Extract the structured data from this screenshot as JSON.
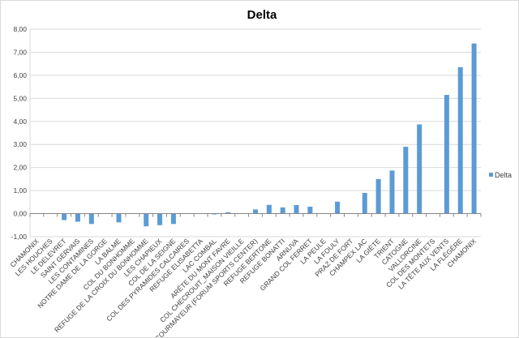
{
  "chart_data": {
    "type": "bar",
    "title": "Delta",
    "xlabel": "",
    "ylabel": "",
    "ylim": [
      -1,
      8
    ],
    "yticks": [
      "-1,00",
      "0,00",
      "1,00",
      "2,00",
      "3,00",
      "4,00",
      "5,00",
      "6,00",
      "7,00",
      "8,00"
    ],
    "grid": true,
    "legend_position": "right",
    "bar_color": "#5b9bd5",
    "categories": [
      "CHAMONIX",
      "LES HOUCHES",
      "LE DELEVRET",
      "SAINT GERVAIS",
      "LES CONTAMINES",
      "NOTRE DAME DE LA GORGE",
      "LA BALME",
      "COL DU BONHOMME",
      "REFUGE DE LA CROIX DU BONHOMME",
      "LES CHAPIEUX",
      "COL DE LA SEIGNE",
      "COL DES PYRAMIDES CALCAIRES",
      "REFUGE ELISABETTA",
      "LAC COMBAL",
      "ARÊTE DU MONT FAVRE",
      "COL CHECROUIT_MAISON VIEILLE",
      "COURMAYEUR (FORUM SPORTS CENTER)",
      "REFUGE BERTONE",
      "REFUGE BONATTI",
      "ARNUVA",
      "GRAND COL FERRET",
      "LA PEULE",
      "LA FOULY",
      "PRAZ DE FORT",
      "CHAMPEX LAC",
      "LA GIÈTE",
      "TRIENT",
      "CATOGNE",
      "VALLORCINE",
      "COL DES MONTETS",
      "LA TÊTE AUX VENTS",
      "LA FLÉGÈRE",
      "CHAMONIX"
    ],
    "series": [
      {
        "name": "Delta",
        "values": [
          0,
          0,
          -0.28,
          -0.35,
          -0.45,
          0,
          -0.38,
          0,
          -0.55,
          -0.5,
          -0.45,
          0,
          0,
          -0.03,
          0.06,
          0,
          0.18,
          0.38,
          0.27,
          0.37,
          0.3,
          0,
          0.52,
          0,
          0.9,
          1.5,
          1.87,
          2.9,
          3.87,
          0,
          5.15,
          6.35,
          7.38
        ]
      }
    ]
  }
}
